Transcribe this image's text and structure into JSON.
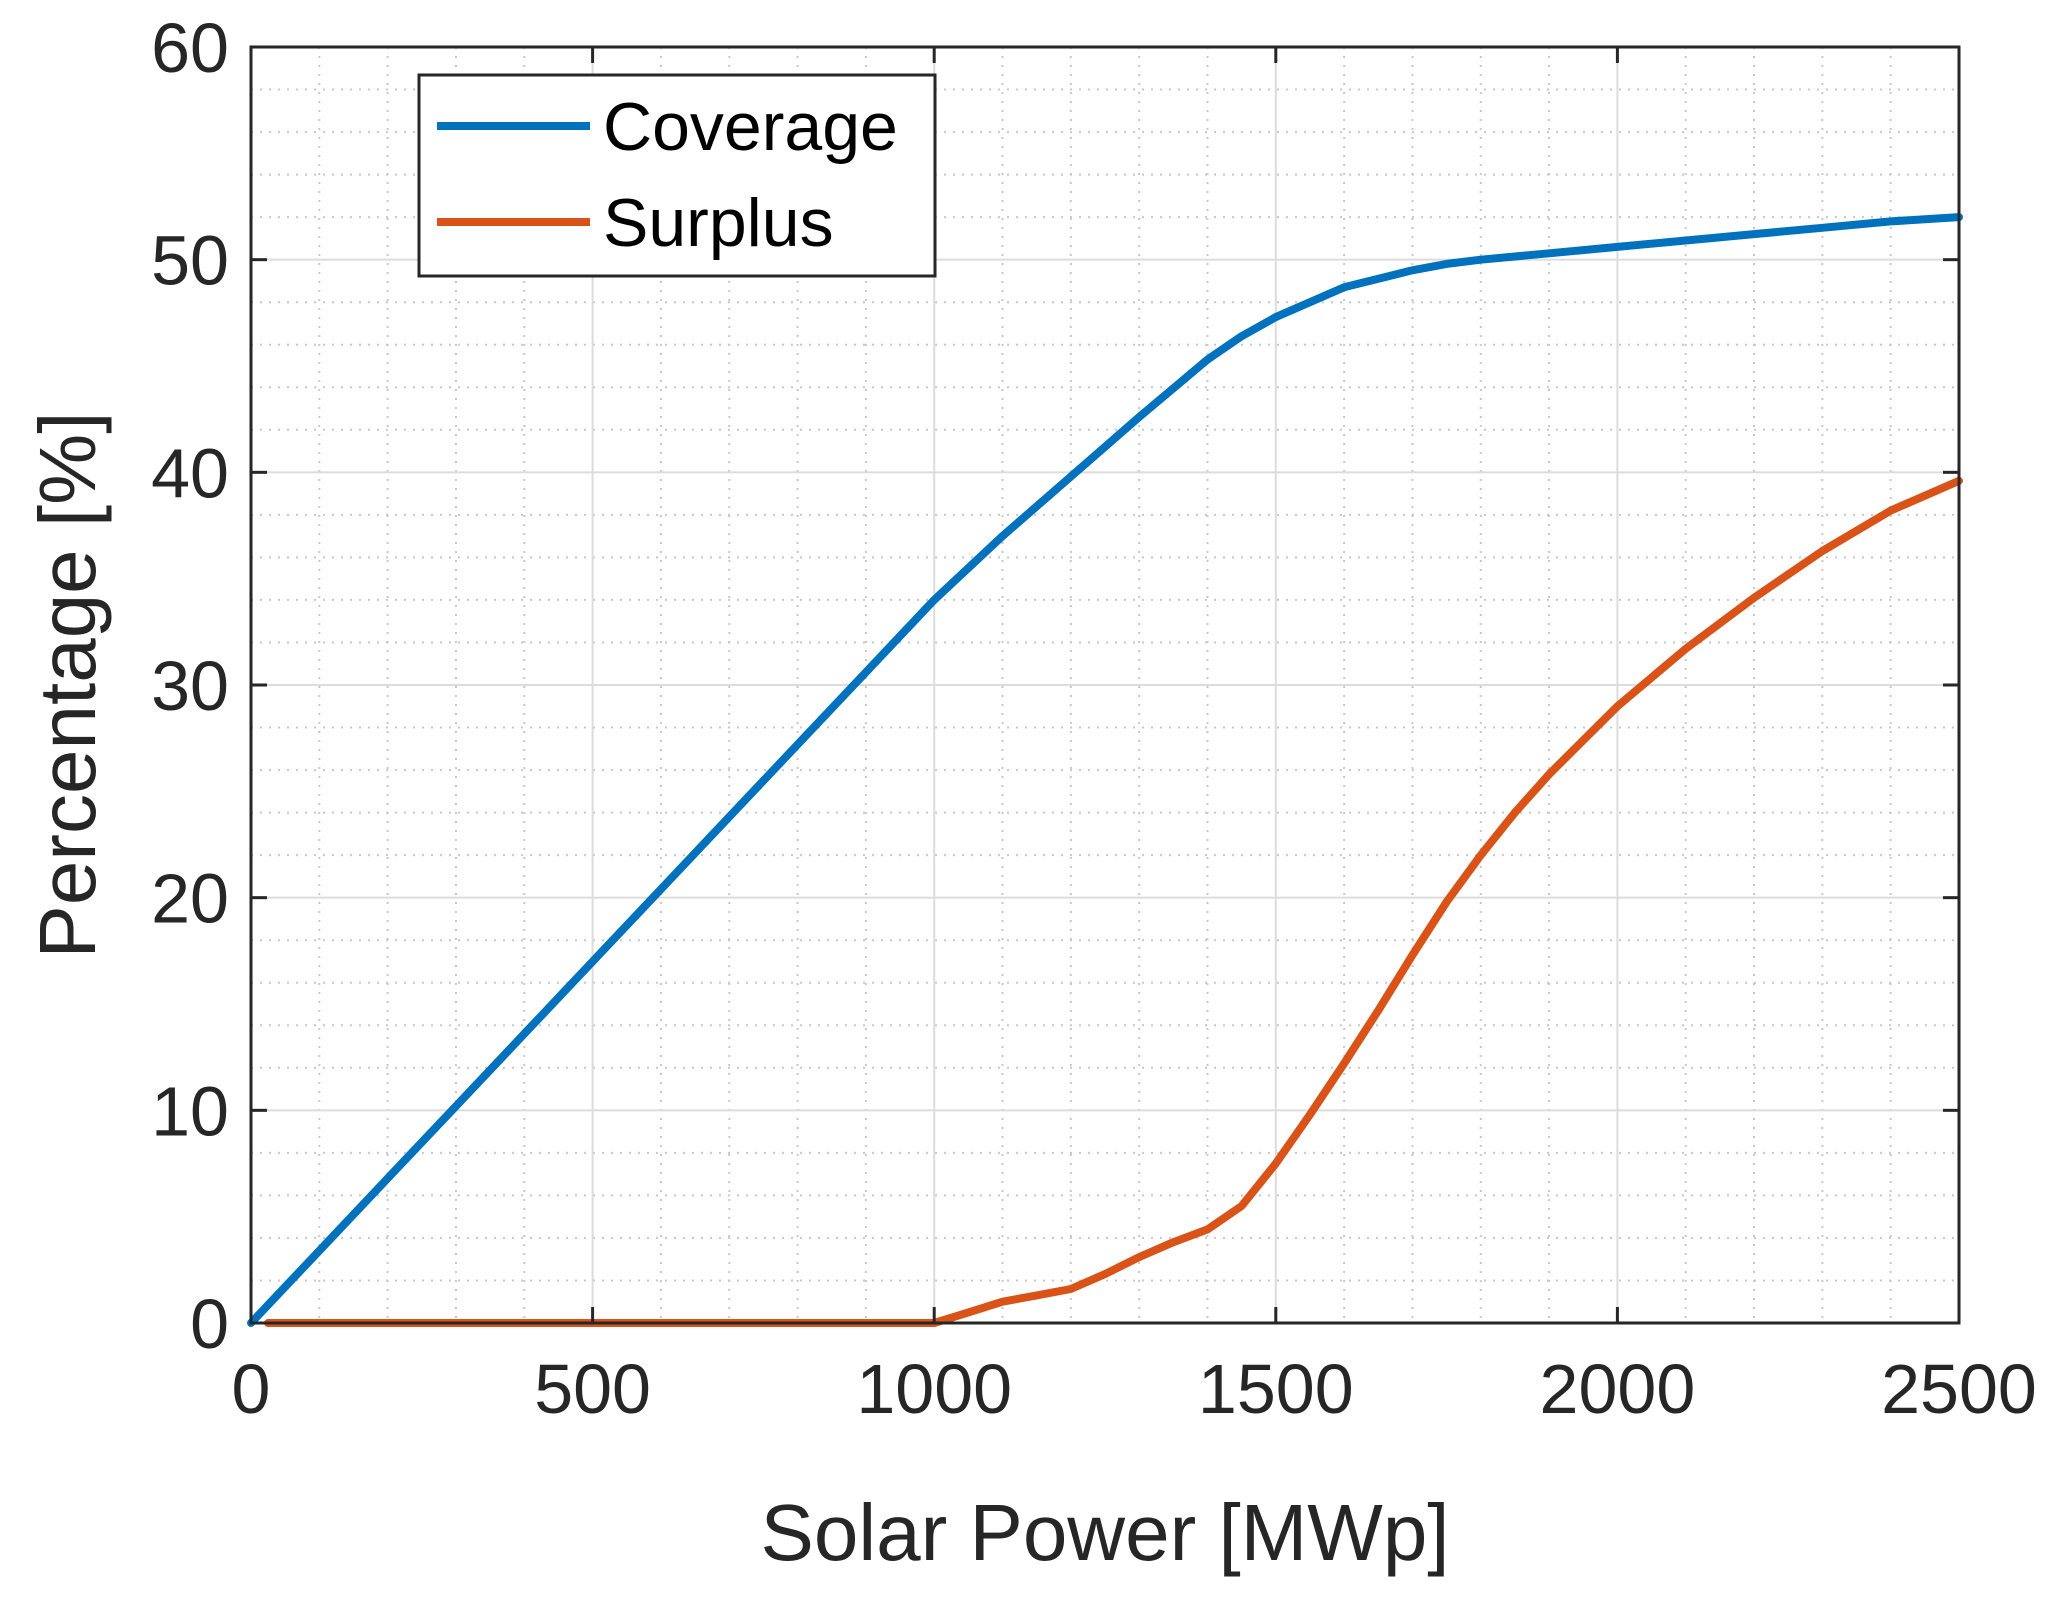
{
  "chart_data": {
    "type": "line",
    "xlabel": "Solar Power [MWp]",
    "ylabel": "Percentage [%]",
    "xlim": [
      0,
      2500
    ],
    "ylim": [
      0,
      60
    ],
    "xticks": [
      0,
      500,
      1000,
      1500,
      2000,
      2500
    ],
    "yticks": [
      0,
      10,
      20,
      30,
      40,
      50,
      60
    ],
    "xtick_labels": [
      "0",
      "500",
      "1000",
      "1500",
      "2000",
      "2500"
    ],
    "ytick_labels": [
      "0",
      "10",
      "20",
      "30",
      "40",
      "50",
      "60"
    ],
    "grid": true,
    "minor_grid": true,
    "legend_position": "top-left",
    "series": [
      {
        "name": "Coverage",
        "color": "#0072BD",
        "x": [
          0,
          100,
          200,
          300,
          400,
          500,
          600,
          700,
          800,
          900,
          1000,
          1100,
          1200,
          1300,
          1400,
          1450,
          1500,
          1600,
          1700,
          1750,
          1800,
          1900,
          2000,
          2100,
          2200,
          2300,
          2400,
          2500
        ],
        "y": [
          0,
          3.4,
          6.8,
          10.2,
          13.6,
          17.0,
          20.4,
          23.8,
          27.2,
          30.6,
          34.0,
          37.0,
          39.8,
          42.6,
          45.3,
          46.4,
          47.3,
          48.7,
          49.5,
          49.8,
          50.0,
          50.3,
          50.6,
          50.9,
          51.2,
          51.5,
          51.8,
          52.0
        ]
      },
      {
        "name": "Surplus",
        "color": "#D95319",
        "x": [
          25,
          200,
          400,
          600,
          800,
          1000,
          1050,
          1100,
          1150,
          1200,
          1250,
          1300,
          1350,
          1400,
          1450,
          1500,
          1550,
          1600,
          1650,
          1700,
          1750,
          1800,
          1850,
          1900,
          1950,
          2000,
          2100,
          2200,
          2300,
          2400,
          2500
        ],
        "y": [
          0,
          0,
          0,
          0,
          0,
          0,
          0.5,
          1.0,
          1.3,
          1.6,
          2.3,
          3.1,
          3.8,
          4.4,
          5.5,
          7.5,
          9.8,
          12.2,
          14.7,
          17.3,
          19.8,
          22.0,
          24.0,
          25.8,
          27.4,
          29.0,
          31.7,
          34.1,
          36.3,
          38.2,
          39.6
        ]
      }
    ]
  }
}
